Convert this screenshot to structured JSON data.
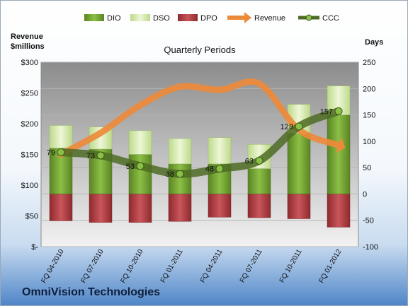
{
  "chart_data": {
    "type": "bar",
    "title": "Quarterly Periods",
    "company": "OmniVision Technologies",
    "left_axis": {
      "label_line1": "Revenue",
      "label_line2": "$millions",
      "ticks": [
        "$-",
        "$50",
        "$100",
        "$150",
        "$200",
        "$250",
        "$300"
      ],
      "min": 0,
      "max": 300
    },
    "right_axis": {
      "label": "Days",
      "ticks": [
        "-100",
        "-50",
        "0",
        "50",
        "100",
        "150",
        "200",
        "250"
      ],
      "min": -100,
      "max": 250
    },
    "categories": [
      "FQ 04-2010",
      "FQ 07-2010",
      "FQ 10-2010",
      "FQ 01-2011",
      "FQ 04-2011",
      "FQ 07-2011",
      "FQ 10-2011",
      "FQ 01-2012"
    ],
    "legend": [
      "DIO",
      "DSO",
      "DPO",
      "Revenue",
      "CCC"
    ],
    "series": [
      {
        "name": "DIO",
        "axis": "days",
        "values": [
          87,
          85,
          75,
          57,
          57,
          48,
          115,
          150
        ]
      },
      {
        "name": "DSO",
        "axis": "days",
        "values": [
          43,
          42,
          45,
          48,
          50,
          46,
          55,
          55
        ]
      },
      {
        "name": "DPO",
        "axis": "days",
        "values": [
          -51,
          -54,
          -54,
          -52,
          -44,
          -45,
          -47,
          -63
        ]
      },
      {
        "name": "Revenue",
        "axis": "revenue",
        "values": [
          150,
          185,
          230,
          260,
          255,
          265,
          190,
          165
        ]
      },
      {
        "name": "CCC",
        "axis": "days",
        "values": [
          79,
          73,
          53,
          38,
          48,
          63,
          128,
          157
        ]
      }
    ],
    "ccc_labels": [
      "79",
      "73",
      "53",
      "38",
      "48",
      "63",
      "128",
      "157"
    ],
    "colors": {
      "dio": "#6d9a2e",
      "dso": "#d4e9a8",
      "dpo": "#b23a3f",
      "revenue": "#ed8a3a",
      "ccc": "#4e6b25",
      "ccc_marker": "#8ac046"
    },
    "grid": true,
    "legend_position": "top"
  }
}
